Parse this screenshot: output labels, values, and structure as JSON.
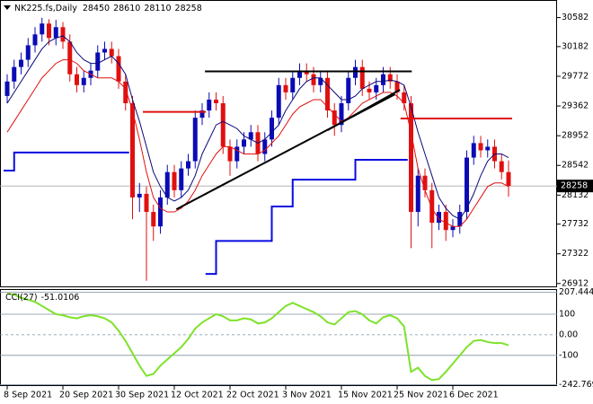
{
  "chart_data": [
    {
      "type": "candlestick",
      "title": "NK225.fs,Daily",
      "categories": [
        "8 Sep 2021",
        null,
        null,
        null,
        null,
        null,
        null,
        null,
        "20 Sep 2021",
        null,
        null,
        null,
        null,
        null,
        null,
        null,
        "30 Sep 2021",
        null,
        null,
        null,
        null,
        null,
        null,
        null,
        "12 Oct 2021",
        null,
        null,
        null,
        null,
        null,
        null,
        null,
        "22 Oct 2021",
        null,
        null,
        null,
        null,
        null,
        null,
        null,
        "3 Nov 2021",
        null,
        null,
        null,
        null,
        null,
        null,
        null,
        "15 Nov 2021",
        null,
        null,
        null,
        null,
        null,
        null,
        null,
        "25 Nov 2021",
        null,
        null,
        null,
        null,
        null,
        null,
        null,
        "6 Dec 2021",
        null,
        null,
        null,
        null,
        null,
        null,
        null,
        null
      ],
      "open": [
        29500,
        29700,
        29900,
        30000,
        30200,
        30350,
        30500,
        30300,
        30450,
        30250,
        29800,
        29650,
        29750,
        29850,
        30100,
        30150,
        30050,
        29700,
        29400,
        28100,
        28150,
        27900,
        27700,
        28100,
        28450,
        28200,
        28500,
        28600,
        29200,
        29300,
        29450,
        29400,
        28800,
        28600,
        28800,
        28900,
        29000,
        28700,
        28900,
        29200,
        29650,
        29550,
        29750,
        29850,
        29800,
        29650,
        29750,
        29300,
        29100,
        29400,
        29750,
        29900,
        29600,
        29550,
        29650,
        29800,
        29700,
        29550,
        29400,
        27900,
        28400,
        28200,
        27750,
        27900,
        27650,
        27700,
        27900,
        28650,
        28850,
        28750,
        28800,
        28600,
        28450
      ],
      "high": [
        29800,
        30000,
        30100,
        30300,
        30450,
        30580,
        30560,
        30550,
        30520,
        30350,
        29900,
        29850,
        29950,
        30200,
        30250,
        30250,
        30150,
        29800,
        29500,
        28300,
        28250,
        28000,
        28200,
        28550,
        28550,
        28600,
        28700,
        29300,
        29400,
        29550,
        29550,
        29500,
        28900,
        28900,
        29000,
        29100,
        29100,
        29000,
        29300,
        29750,
        29750,
        29850,
        29950,
        29950,
        29900,
        29850,
        29850,
        29400,
        29500,
        29850,
        30000,
        30000,
        29700,
        29750,
        29900,
        29900,
        29800,
        29650,
        29500,
        28500,
        28500,
        28300,
        28000,
        28000,
        27800,
        28000,
        28750,
        28950,
        28950,
        28900,
        28900,
        28700,
        28610
      ],
      "low": [
        29400,
        29600,
        29800,
        29900,
        30100,
        30250,
        30200,
        30200,
        30150,
        29700,
        29550,
        29550,
        29650,
        29750,
        30000,
        29950,
        29600,
        29300,
        27800,
        27900,
        26950,
        27500,
        27600,
        28000,
        28100,
        28100,
        28400,
        28500,
        29100,
        29200,
        29300,
        28700,
        28400,
        28500,
        28700,
        28800,
        28600,
        28600,
        28800,
        29100,
        29450,
        29450,
        29650,
        29700,
        29550,
        29550,
        29200,
        28950,
        29000,
        29300,
        29650,
        29500,
        29450,
        29450,
        29550,
        29600,
        29450,
        29300,
        27400,
        27700,
        28100,
        27400,
        27650,
        27500,
        27550,
        27600,
        27800,
        28550,
        28650,
        28650,
        28500,
        28350,
        28110
      ],
      "close": [
        29700,
        29900,
        30000,
        30200,
        30350,
        30500,
        30300,
        30450,
        30250,
        29800,
        29650,
        29750,
        29850,
        30100,
        30150,
        30050,
        29700,
        29400,
        28100,
        28150,
        27900,
        27700,
        28100,
        28450,
        28200,
        28500,
        28600,
        29200,
        29300,
        29450,
        29400,
        28800,
        28600,
        28800,
        28900,
        29000,
        28700,
        28900,
        29200,
        29650,
        29550,
        29750,
        29850,
        29800,
        29650,
        29750,
        29300,
        29100,
        29400,
        29750,
        29900,
        29600,
        29550,
        29650,
        29800,
        29700,
        29550,
        29400,
        27900,
        28400,
        28200,
        27750,
        27900,
        27650,
        27700,
        27900,
        28650,
        28850,
        28750,
        28800,
        28600,
        28450,
        28258
      ],
      "up_color": "#0b0bb5",
      "down_color": "#e01010",
      "lines": [
        {
          "style": "line",
          "color": "#0a0a7a",
          "values": [
            29400,
            29550,
            29700,
            29850,
            30000,
            30150,
            30250,
            30300,
            30330,
            30250,
            30100,
            30000,
            29950,
            29950,
            30000,
            30050,
            29950,
            29800,
            29450,
            29150,
            28800,
            28450,
            28250,
            28100,
            28050,
            28100,
            28200,
            28400,
            28700,
            28900,
            29100,
            29150,
            29100,
            29050,
            28950,
            28900,
            28850,
            28900,
            29000,
            29100,
            29300,
            29450,
            29600,
            29700,
            29750,
            29750,
            29650,
            29550,
            29450,
            29450,
            29500,
            29600,
            29650,
            29700,
            29700,
            29720,
            29700,
            29650,
            29350,
            29000,
            28700,
            28400,
            28100,
            27950,
            27850,
            27800,
            27950,
            28150,
            28400,
            28600,
            28700,
            28700,
            28650
          ]
        },
        {
          "style": "line",
          "color": "#e01010",
          "values": [
            29000,
            29150,
            29300,
            29450,
            29600,
            29750,
            29850,
            29950,
            30000,
            30000,
            29950,
            29850,
            29800,
            29750,
            29750,
            29750,
            29700,
            29600,
            29300,
            28900,
            28450,
            28100,
            27950,
            27900,
            27900,
            27950,
            28050,
            28200,
            28400,
            28550,
            28700,
            28800,
            28800,
            28750,
            28700,
            28700,
            28700,
            28750,
            28850,
            28950,
            29100,
            29250,
            29350,
            29400,
            29450,
            29450,
            29350,
            29250,
            29150,
            29200,
            29300,
            29400,
            29450,
            29500,
            29550,
            29550,
            29500,
            29400,
            29000,
            28500,
            28200,
            27950,
            27800,
            27750,
            27700,
            27700,
            27800,
            27950,
            28100,
            28250,
            28300,
            28300,
            28250
          ]
        },
        {
          "style": "step",
          "color": "#e01010",
          "values": [
            null,
            null,
            null,
            null,
            null,
            null,
            null,
            null,
            null,
            null,
            null,
            null,
            null,
            null,
            null,
            null,
            null,
            null,
            null,
            null,
            29280,
            29280,
            29280,
            29280,
            29280,
            29280,
            29280,
            29280,
            29280,
            null,
            null,
            null,
            null,
            null,
            null,
            null,
            null,
            null,
            null,
            null,
            null,
            null,
            null,
            null,
            null,
            null,
            null,
            null,
            null,
            null,
            null,
            null,
            null,
            null,
            null,
            null,
            null,
            29190,
            29190,
            29190,
            29190,
            29190,
            29190,
            29190,
            29190,
            29190,
            29190,
            29190,
            29190,
            29190,
            29190,
            29190,
            29190
          ]
        },
        {
          "style": "step",
          "color": "#0a0ae0",
          "values": [
            28470,
            28720,
            28720,
            28720,
            28720,
            28720,
            28720,
            28720,
            28720,
            28720,
            28720,
            28720,
            28720,
            28720,
            28720,
            28720,
            28720,
            28720,
            null,
            null,
            null,
            null,
            null,
            null,
            null,
            null,
            null,
            null,
            null,
            27045,
            27500,
            27500,
            27500,
            27500,
            27500,
            27500,
            27500,
            27500,
            27975,
            27975,
            27975,
            28346,
            28346,
            28346,
            28346,
            28346,
            28346,
            28346,
            28346,
            28346,
            28619,
            28619,
            28619,
            28619,
            28619,
            28619,
            28619,
            28619,
            null,
            null,
            null,
            null,
            null,
            null,
            null,
            null,
            null,
            null,
            null,
            null,
            null,
            null,
            null
          ]
        }
      ],
      "trend_lines": [
        {
          "color": "#000000",
          "x": [
            28.4,
            58.1
          ],
          "y": [
            29840,
            29840
          ]
        },
        {
          "color": "#000000",
          "x": [
            24.3,
            55.7
          ],
          "y": [
            27937,
            29524
          ]
        },
        {
          "color": "#000000",
          "x": [
            46,
            56.4
          ],
          "y": [
            29028,
            29586
          ]
        }
      ],
      "ylim": [
        26860,
        30800
      ],
      "yticks": [
        30582,
        30182,
        29772,
        29362,
        28952,
        28542,
        28132,
        27732,
        27322,
        26912
      ]
    },
    {
      "type": "line",
      "title": "CCI(27)",
      "color": "#7ee22a",
      "values": [
        200,
        195,
        180,
        170,
        160,
        140,
        120,
        100,
        95,
        85,
        80,
        90,
        95,
        90,
        80,
        60,
        20,
        -30,
        -90,
        -150,
        -200,
        -190,
        -150,
        -120,
        -90,
        -60,
        -20,
        30,
        60,
        80,
        100,
        90,
        70,
        70,
        80,
        75,
        55,
        60,
        80,
        110,
        140,
        155,
        140,
        125,
        110,
        90,
        60,
        50,
        80,
        110,
        115,
        100,
        70,
        55,
        85,
        95,
        80,
        40,
        -180,
        -160,
        -200,
        -220,
        -215,
        -180,
        -140,
        -100,
        -60,
        -30,
        -25,
        -35,
        -40,
        -40,
        -51.0106
      ],
      "ylim": [
        -249,
        222
      ],
      "yticks": [
        207.4445,
        100,
        {
          "value": 0,
          "label": "0.00"
        },
        -100,
        -242.769
      ]
    }
  ]
}
